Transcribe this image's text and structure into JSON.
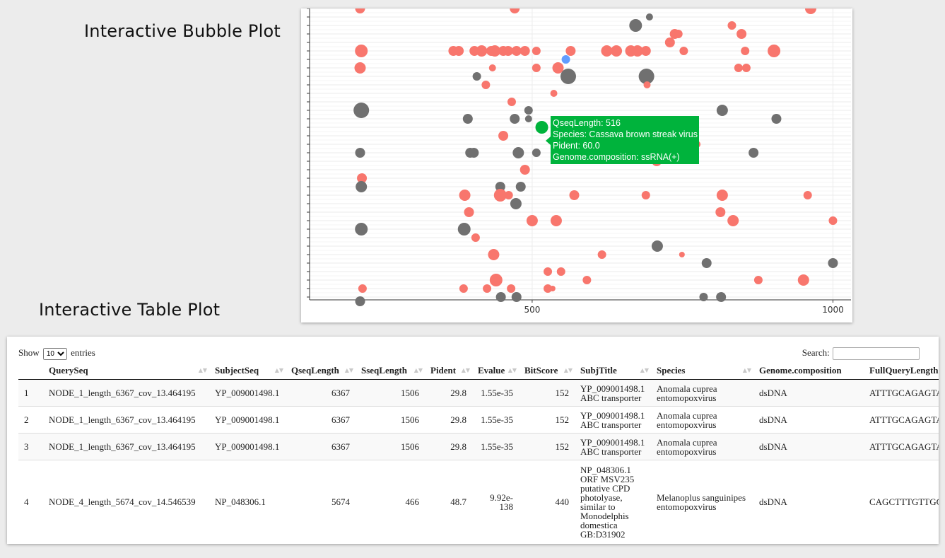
{
  "bubble_title": "Interactive Bubble Plot",
  "table_title": "Interactive Table Plot",
  "colors": {
    "red": "#f8766d",
    "gray": "#707070",
    "blue": "#619cff",
    "green": "#00b33c"
  },
  "chart_data": {
    "type": "scatter",
    "x_ticks": [
      "500",
      "1000"
    ],
    "x_tick_values": [
      500,
      1000
    ],
    "xlim": [
      130,
      1030
    ],
    "rows": 34,
    "grid": true,
    "points": [
      {
        "x": 214,
        "y": 34,
        "s": 7,
        "c": "red"
      },
      {
        "x": 471,
        "y": 34,
        "s": 7,
        "c": "red"
      },
      {
        "x": 963,
        "y": 34,
        "s": 8,
        "c": "red"
      },
      {
        "x": 672,
        "y": 32,
        "s": 9,
        "c": "gray"
      },
      {
        "x": 695,
        "y": 33,
        "s": 5,
        "c": "gray"
      },
      {
        "x": 737,
        "y": 31,
        "s": 7,
        "c": "red"
      },
      {
        "x": 743,
        "y": 31,
        "s": 6,
        "c": "red"
      },
      {
        "x": 832,
        "y": 32,
        "s": 6,
        "c": "red"
      },
      {
        "x": 848,
        "y": 31,
        "s": 7,
        "c": "red"
      },
      {
        "x": 729,
        "y": 30,
        "s": 7,
        "c": "red"
      },
      {
        "x": 216,
        "y": 29,
        "s": 9,
        "c": "red"
      },
      {
        "x": 369,
        "y": 29,
        "s": 7,
        "c": "red"
      },
      {
        "x": 378,
        "y": 29,
        "s": 7,
        "c": "red"
      },
      {
        "x": 404,
        "y": 29,
        "s": 7,
        "c": "red"
      },
      {
        "x": 416,
        "y": 29,
        "s": 8,
        "c": "red"
      },
      {
        "x": 432,
        "y": 29,
        "s": 7,
        "c": "red"
      },
      {
        "x": 438,
        "y": 29,
        "s": 8,
        "c": "red"
      },
      {
        "x": 452,
        "y": 29,
        "s": 7,
        "c": "red"
      },
      {
        "x": 460,
        "y": 29,
        "s": 7,
        "c": "red"
      },
      {
        "x": 474,
        "y": 29,
        "s": 7,
        "c": "red"
      },
      {
        "x": 488,
        "y": 29,
        "s": 7,
        "c": "red"
      },
      {
        "x": 507,
        "y": 29,
        "s": 6,
        "c": "red"
      },
      {
        "x": 564,
        "y": 29,
        "s": 7,
        "c": "red"
      },
      {
        "x": 624,
        "y": 29,
        "s": 8,
        "c": "red"
      },
      {
        "x": 640,
        "y": 29,
        "s": 8,
        "c": "red"
      },
      {
        "x": 664,
        "y": 29,
        "s": 8,
        "c": "red"
      },
      {
        "x": 675,
        "y": 29,
        "s": 8,
        "c": "red"
      },
      {
        "x": 689,
        "y": 29,
        "s": 7,
        "c": "red"
      },
      {
        "x": 752,
        "y": 29,
        "s": 6,
        "c": "red"
      },
      {
        "x": 902,
        "y": 29,
        "s": 9,
        "c": "red"
      },
      {
        "x": 854,
        "y": 29,
        "s": 6,
        "c": "red"
      },
      {
        "x": 556,
        "y": 28,
        "s": 6,
        "c": "blue"
      },
      {
        "x": 543,
        "y": 27,
        "s": 8,
        "c": "red"
      },
      {
        "x": 214,
        "y": 27,
        "s": 8,
        "c": "red"
      },
      {
        "x": 434,
        "y": 27,
        "s": 5,
        "c": "red"
      },
      {
        "x": 507,
        "y": 27,
        "s": 6,
        "c": "red"
      },
      {
        "x": 544,
        "y": 27,
        "s": 6,
        "c": "red"
      },
      {
        "x": 843,
        "y": 27,
        "s": 6,
        "c": "red"
      },
      {
        "x": 856,
        "y": 27,
        "s": 6,
        "c": "red"
      },
      {
        "x": 560,
        "y": 26,
        "s": 11,
        "c": "gray"
      },
      {
        "x": 690,
        "y": 26,
        "s": 11,
        "c": "gray"
      },
      {
        "x": 408,
        "y": 26,
        "s": 6,
        "c": "gray"
      },
      {
        "x": 423,
        "y": 25,
        "s": 6,
        "c": "red"
      },
      {
        "x": 691,
        "y": 25,
        "s": 5,
        "c": "red"
      },
      {
        "x": 536,
        "y": 24,
        "s": 5,
        "c": "red"
      },
      {
        "x": 466,
        "y": 23,
        "s": 6,
        "c": "red"
      },
      {
        "x": 216,
        "y": 22,
        "s": 11,
        "c": "gray"
      },
      {
        "x": 393,
        "y": 21,
        "s": 7,
        "c": "gray"
      },
      {
        "x": 471,
        "y": 21,
        "s": 7,
        "c": "gray"
      },
      {
        "x": 494,
        "y": 22,
        "s": 6,
        "c": "gray"
      },
      {
        "x": 494,
        "y": 21,
        "s": 5,
        "c": "gray"
      },
      {
        "x": 816,
        "y": 22,
        "s": 8,
        "c": "gray"
      },
      {
        "x": 906,
        "y": 21,
        "s": 7,
        "c": "gray"
      },
      {
        "x": 452,
        "y": 19,
        "s": 7,
        "c": "red"
      },
      {
        "x": 214,
        "y": 17,
        "s": 7,
        "c": "gray"
      },
      {
        "x": 397,
        "y": 17,
        "s": 7,
        "c": "gray"
      },
      {
        "x": 403,
        "y": 17,
        "s": 7,
        "c": "gray"
      },
      {
        "x": 477,
        "y": 17,
        "s": 8,
        "c": "gray"
      },
      {
        "x": 507,
        "y": 17,
        "s": 6,
        "c": "gray"
      },
      {
        "x": 774,
        "y": 18,
        "s": 5,
        "c": "red"
      },
      {
        "x": 868,
        "y": 17,
        "s": 7,
        "c": "gray"
      },
      {
        "x": 707,
        "y": 16,
        "s": 7,
        "c": "red"
      },
      {
        "x": 488,
        "y": 15,
        "s": 7,
        "c": "red"
      },
      {
        "x": 217,
        "y": 14,
        "s": 7,
        "c": "red"
      },
      {
        "x": 216,
        "y": 13,
        "s": 8,
        "c": "gray"
      },
      {
        "x": 447,
        "y": 13,
        "s": 7,
        "c": "gray"
      },
      {
        "x": 481,
        "y": 13,
        "s": 7,
        "c": "gray"
      },
      {
        "x": 388,
        "y": 12,
        "s": 8,
        "c": "red"
      },
      {
        "x": 447,
        "y": 12,
        "s": 9,
        "c": "red"
      },
      {
        "x": 461,
        "y": 12,
        "s": 6,
        "c": "red"
      },
      {
        "x": 570,
        "y": 12,
        "s": 7,
        "c": "red"
      },
      {
        "x": 689,
        "y": 12,
        "s": 6,
        "c": "red"
      },
      {
        "x": 816,
        "y": 12,
        "s": 8,
        "c": "red"
      },
      {
        "x": 958,
        "y": 12,
        "s": 6,
        "c": "red"
      },
      {
        "x": 473,
        "y": 11,
        "s": 8,
        "c": "gray"
      },
      {
        "x": 395,
        "y": 10,
        "s": 7,
        "c": "red"
      },
      {
        "x": 813,
        "y": 10,
        "s": 7,
        "c": "red"
      },
      {
        "x": 500,
        "y": 9,
        "s": 8,
        "c": "red"
      },
      {
        "x": 540,
        "y": 9,
        "s": 8,
        "c": "red"
      },
      {
        "x": 834,
        "y": 9,
        "s": 8,
        "c": "red"
      },
      {
        "x": 1000,
        "y": 9,
        "s": 6,
        "c": "red"
      },
      {
        "x": 216,
        "y": 8,
        "s": 9,
        "c": "gray"
      },
      {
        "x": 387,
        "y": 8,
        "s": 9,
        "c": "gray"
      },
      {
        "x": 406,
        "y": 7,
        "s": 6,
        "c": "red"
      },
      {
        "x": 708,
        "y": 6,
        "s": 8,
        "c": "gray"
      },
      {
        "x": 749,
        "y": 5,
        "s": 4,
        "c": "red"
      },
      {
        "x": 436,
        "y": 5,
        "s": 8,
        "c": "red"
      },
      {
        "x": 616,
        "y": 5,
        "s": 6,
        "c": "red"
      },
      {
        "x": 790,
        "y": 4,
        "s": 7,
        "c": "gray"
      },
      {
        "x": 1000,
        "y": 4,
        "s": 7,
        "c": "gray"
      },
      {
        "x": 526,
        "y": 3,
        "s": 6,
        "c": "red"
      },
      {
        "x": 548,
        "y": 3,
        "s": 6,
        "c": "red"
      },
      {
        "x": 440,
        "y": 2,
        "s": 9,
        "c": "red"
      },
      {
        "x": 591,
        "y": 2,
        "s": 6,
        "c": "red"
      },
      {
        "x": 876,
        "y": 2,
        "s": 6,
        "c": "red"
      },
      {
        "x": 951,
        "y": 2,
        "s": 8,
        "c": "red"
      },
      {
        "x": 218,
        "y": 1,
        "s": 6,
        "c": "red"
      },
      {
        "x": 386,
        "y": 1,
        "s": 6,
        "c": "red"
      },
      {
        "x": 425,
        "y": 1,
        "s": 6,
        "c": "red"
      },
      {
        "x": 465,
        "y": 1,
        "s": 6,
        "c": "red"
      },
      {
        "x": 526,
        "y": 1,
        "s": 6,
        "c": "red"
      },
      {
        "x": 534,
        "y": 1,
        "s": 4,
        "c": "red"
      },
      {
        "x": 448,
        "y": 0,
        "s": 7,
        "c": "gray"
      },
      {
        "x": 474,
        "y": 0,
        "s": 7,
        "c": "gray"
      },
      {
        "x": 785,
        "y": 0,
        "s": 6,
        "c": "gray"
      },
      {
        "x": 814,
        "y": 0,
        "s": 7,
        "c": "gray"
      },
      {
        "x": 214,
        "y": -0.5,
        "s": 7,
        "c": "gray"
      },
      {
        "x": 516,
        "y": 20,
        "s": 9,
        "c": "green"
      }
    ]
  },
  "tooltip": {
    "qseq": "QseqLength:  516",
    "species": "Species: Cassava brown streak virus",
    "pident": "Pident: 60.0",
    "genome": "Genome.composition: ssRNA(+)"
  },
  "table": {
    "show_label": "Show",
    "entries_label": "entries",
    "length_value": "10",
    "search_label": "Search:",
    "headers": [
      "",
      "QuerySeq",
      "SubjectSeq",
      "QseqLength",
      "SseqLength",
      "Pident",
      "Evalue",
      "BitScore",
      "SubjTitle",
      "Species",
      "Genome.composition",
      "FullQueryLength"
    ],
    "rows": [
      {
        "idx": "1",
        "queryseq": "NODE_1_length_6367_cov_13.464195",
        "subjectseq": "YP_009001498.1",
        "qseqlength": "6367",
        "sseqlength": "1506",
        "pident": "29.8",
        "evalue": "1.55e-35",
        "bitscore": "152",
        "subjtitle": "YP_009001498.1 ABC transporter",
        "species": "Anomala cuprea entomopoxvirus",
        "genome": "dsDNA",
        "fullquery": "ATTTGCAGAGTAA"
      },
      {
        "idx": "2",
        "queryseq": "NODE_1_length_6367_cov_13.464195",
        "subjectseq": "YP_009001498.1",
        "qseqlength": "6367",
        "sseqlength": "1506",
        "pident": "29.8",
        "evalue": "1.55e-35",
        "bitscore": "152",
        "subjtitle": "YP_009001498.1 ABC transporter",
        "species": "Anomala cuprea entomopoxvirus",
        "genome": "dsDNA",
        "fullquery": "ATTTGCAGAGTAA"
      },
      {
        "idx": "3",
        "queryseq": "NODE_1_length_6367_cov_13.464195",
        "subjectseq": "YP_009001498.1",
        "qseqlength": "6367",
        "sseqlength": "1506",
        "pident": "29.8",
        "evalue": "1.55e-35",
        "bitscore": "152",
        "subjtitle": "YP_009001498.1 ABC transporter",
        "species": "Anomala cuprea entomopoxvirus",
        "genome": "dsDNA",
        "fullquery": "ATTTGCAGAGTAA"
      },
      {
        "idx": "4",
        "queryseq": "NODE_4_length_5674_cov_14.546539",
        "subjectseq": "NP_048306.1",
        "qseqlength": "5674",
        "sseqlength": "466",
        "pident": "48.7",
        "evalue": "9.92e-138",
        "bitscore": "440",
        "subjtitle": "NP_048306.1 ORF MSV235 putative CPD photolyase, similar to Monodelphis domestica GB:D31902",
        "species": "Melanoplus sanguinipes entomopoxvirus",
        "genome": "dsDNA",
        "fullquery": "CAGCTTTGTTGGT"
      }
    ]
  }
}
